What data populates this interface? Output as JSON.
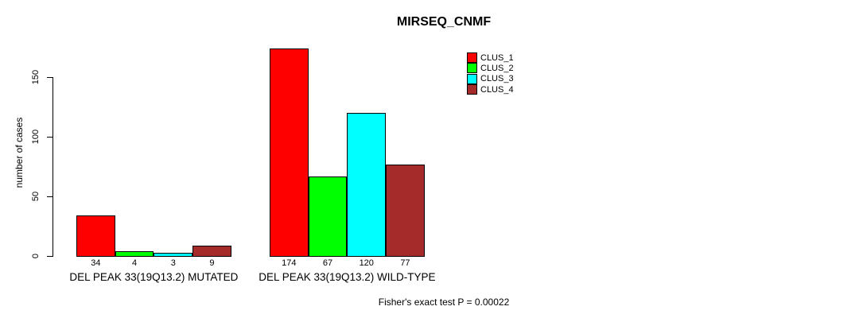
{
  "chart_data": {
    "type": "bar",
    "title": "MIRSEQ_CNMF",
    "ylabel": "number of cases",
    "xlabel": "",
    "ylim": [
      0,
      175
    ],
    "yticks": [
      0,
      50,
      100,
      150
    ],
    "grid": false,
    "legend_position": "top-right",
    "categories": [
      "DEL PEAK 33(19Q13.2) MUTATED",
      "DEL PEAK 33(19Q13.2) WILD-TYPE"
    ],
    "series": [
      {
        "name": "CLUS_1",
        "color": "#FF0000",
        "values": [
          34,
          174
        ]
      },
      {
        "name": "CLUS_2",
        "color": "#00FF00",
        "values": [
          4,
          67
        ]
      },
      {
        "name": "CLUS_3",
        "color": "#00FFFF",
        "values": [
          3,
          120
        ]
      },
      {
        "name": "CLUS_4",
        "color": "#A52A2A",
        "values": [
          9,
          77
        ]
      }
    ],
    "bar_value_labels": [
      [
        "34",
        "4",
        "3",
        "9"
      ],
      [
        "174",
        "67",
        "120",
        "77"
      ]
    ],
    "annotation": "Fisher's exact test P = 0.00022"
  }
}
